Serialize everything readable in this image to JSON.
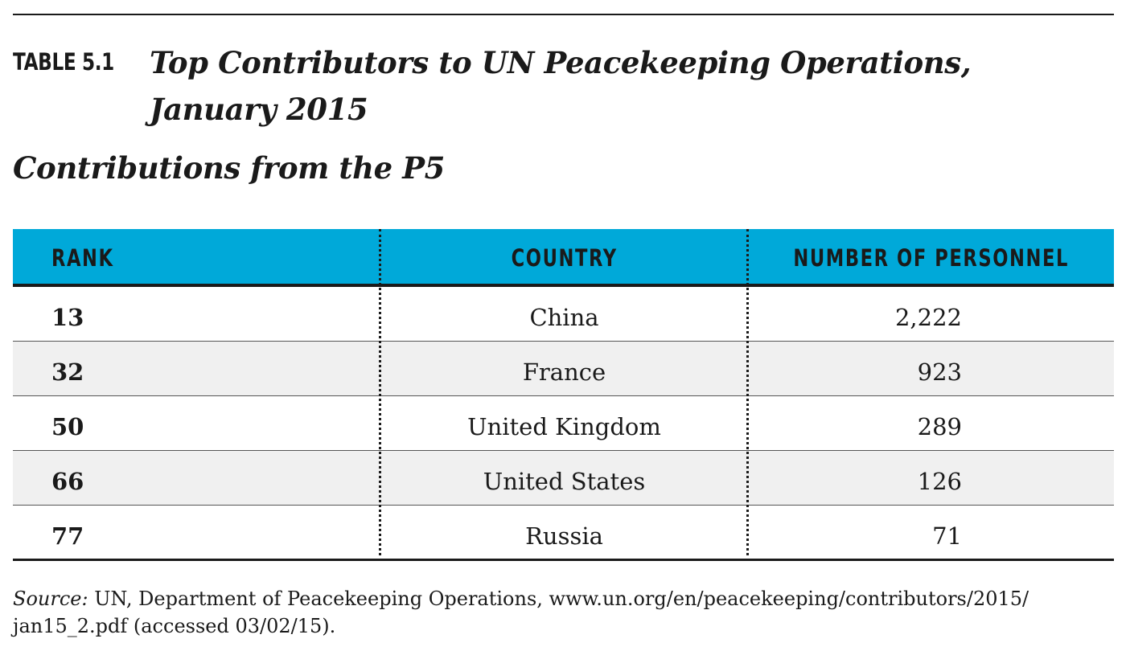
{
  "table_label": "TABLE 5.1",
  "title": "Top Contributors to UN Peacekeeping Operations, January 2015",
  "subtitle": "Contributions from the P5",
  "source_label": "Source:",
  "source_text": "UN, Department of Peacekeeping Operations, www.un.org/en/peacekeeping/contributors/2015/ jan15_2.pdf (accessed 03/02/15).",
  "chart_data": {
    "type": "table",
    "title": "Top Contributors to UN Peacekeeping Operations, January 2015",
    "subtitle": "Contributions from the P5",
    "columns": [
      "RANK",
      "COUNTRY",
      "NUMBER OF PERSONNEL"
    ],
    "rows": [
      {
        "rank": "13",
        "country": "China",
        "personnel": "2,222"
      },
      {
        "rank": "32",
        "country": "France",
        "personnel": "923"
      },
      {
        "rank": "50",
        "country": "United Kingdom",
        "personnel": "289"
      },
      {
        "rank": "66",
        "country": "United States",
        "personnel": "126"
      },
      {
        "rank": "77",
        "country": "Russia",
        "personnel": "71"
      }
    ],
    "colors": {
      "header_background": "#00a9d9",
      "alt_row_background": "#f0f0f0",
      "text": "#1a1a1a"
    }
  }
}
